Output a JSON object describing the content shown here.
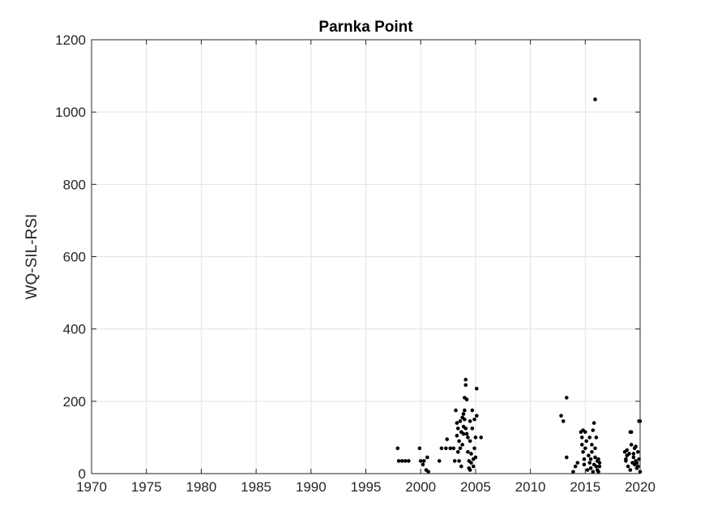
{
  "chart_data": {
    "type": "scatter",
    "title": "Parnka Point",
    "xlabel": "",
    "ylabel": "WQ-SIL-RSI",
    "xlim": [
      1970,
      2020
    ],
    "ylim": [
      0,
      1200
    ],
    "xticks": [
      "1970",
      "1975",
      "1980",
      "1985",
      "1990",
      "1995",
      "2000",
      "2005",
      "2010",
      "2015",
      "2020"
    ],
    "yticks": [
      "0",
      "200",
      "400",
      "600",
      "800",
      "1000",
      "1200"
    ],
    "grid": true,
    "marker_color": "#000000",
    "x": [
      1997.9,
      1998.0,
      1998.3,
      1998.6,
      1998.9,
      1999.9,
      2000.0,
      2000.2,
      2000.3,
      2000.5,
      2000.6,
      2000.7,
      2001.7,
      2001.9,
      2002.3,
      2002.4,
      2002.7,
      2003.0,
      2003.1,
      2003.2,
      2003.3,
      2003.3,
      2003.4,
      2003.4,
      2003.5,
      2003.5,
      2003.6,
      2003.6,
      2003.7,
      2003.7,
      2003.8,
      2003.8,
      2003.9,
      2003.9,
      2004.0,
      2004.0,
      2004.0,
      2004.1,
      2004.1,
      2004.2,
      2004.2,
      2004.3,
      2004.3,
      2004.4,
      2004.4,
      2004.5,
      2004.5,
      2004.5,
      2004.6,
      2004.6,
      2004.7,
      2004.7,
      2004.8,
      2004.8,
      2004.9,
      2004.9,
      2005.0,
      2005.0,
      2005.1,
      2005.1,
      2005.5,
      2004.1,
      2003.9,
      2012.8,
      2013.0,
      2013.3,
      2013.3,
      2013.9,
      2014.1,
      2014.3,
      2014.6,
      2014.7,
      2014.7,
      2014.8,
      2014.8,
      2014.9,
      2014.9,
      2015.0,
      2015.0,
      2015.1,
      2015.2,
      2015.3,
      2015.4,
      2015.4,
      2015.5,
      2015.5,
      2015.6,
      2015.6,
      2015.7,
      2015.7,
      2015.8,
      2015.8,
      2015.9,
      2015.9,
      2016.0,
      2016.0,
      2016.1,
      2016.1,
      2016.2,
      2016.2,
      2016.3,
      2016.3,
      2015.9,
      2018.6,
      2018.7,
      2018.8,
      2018.9,
      2019.0,
      2019.1,
      2019.2,
      2019.3,
      2019.4,
      2019.5,
      2019.6,
      2019.7,
      2019.8,
      2019.9,
      2020.0,
      2019.6,
      2019.8,
      2018.8,
      2019.1,
      2019.4,
      2019.7,
      2019.9,
      2020.0,
      2018.7,
      2019.2,
      2019.5
    ],
    "y": [
      70,
      35,
      35,
      35,
      35,
      70,
      35,
      25,
      35,
      10,
      45,
      5,
      35,
      70,
      70,
      95,
      70,
      70,
      35,
      175,
      105,
      140,
      60,
      125,
      35,
      90,
      145,
      70,
      115,
      20,
      155,
      80,
      130,
      110,
      210,
      175,
      150,
      260,
      245,
      205,
      110,
      100,
      60,
      35,
      15,
      145,
      90,
      10,
      55,
      30,
      175,
      125,
      40,
      20,
      150,
      70,
      100,
      45,
      235,
      160,
      100,
      125,
      165,
      160,
      145,
      210,
      45,
      5,
      20,
      30,
      115,
      100,
      80,
      60,
      120,
      40,
      25,
      115,
      70,
      90,
      10,
      50,
      30,
      100,
      15,
      40,
      80,
      60,
      120,
      5,
      25,
      140,
      70,
      45,
      20,
      100,
      35,
      10,
      40,
      5,
      30,
      20,
      1035,
      60,
      35,
      50,
      20,
      55,
      115,
      80,
      30,
      45,
      25,
      75,
      15,
      60,
      40,
      145,
      35,
      20,
      65,
      10,
      55,
      30,
      145,
      5,
      40,
      115,
      70
    ]
  }
}
